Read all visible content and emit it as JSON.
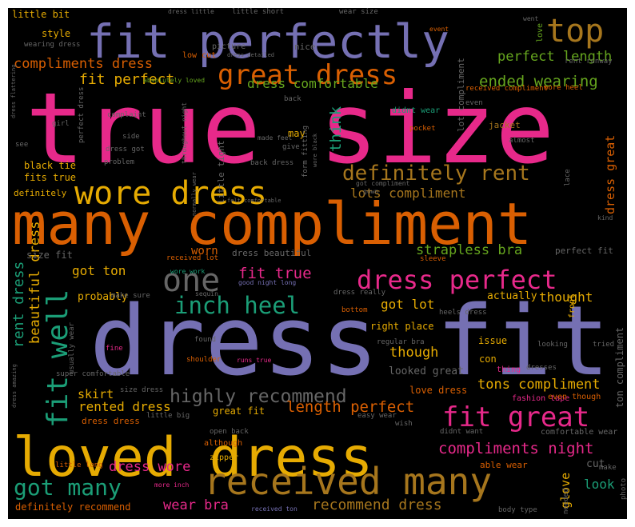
{
  "palette": {
    "pink": "#e7298a",
    "purple": "#7570b3",
    "orange": "#d95f02",
    "gold": "#e6ab02",
    "teal": "#1b9e77",
    "green": "#66a61e",
    "brown": "#a6761d",
    "gray": "#666666",
    "background": "#000000",
    "frame": "#ffffff"
  },
  "words": [
    {
      "text": "true size",
      "color": "pink"
    },
    {
      "text": "dress fit",
      "color": "purple"
    },
    {
      "text": "many compliment",
      "color": "orange"
    },
    {
      "text": "fit perfectly",
      "color": "purple"
    },
    {
      "text": "loved dress",
      "color": "gold"
    },
    {
      "text": "received many",
      "color": "brown"
    },
    {
      "text": "great dress",
      "color": "orange"
    },
    {
      "text": "wore dress",
      "color": "gold"
    },
    {
      "text": "dress perfect",
      "color": "pink"
    },
    {
      "text": "fit great",
      "color": "pink"
    },
    {
      "text": "top",
      "color": "brown"
    },
    {
      "text": "one",
      "color": "gray"
    },
    {
      "text": "definitely rent",
      "color": "brown"
    },
    {
      "text": "inch heel",
      "color": "teal"
    },
    {
      "text": "highly recommend",
      "color": "gray"
    },
    {
      "text": "got many",
      "color": "teal"
    },
    {
      "text": "fit well",
      "color": "teal"
    },
    {
      "text": "compliments dress",
      "color": "orange"
    },
    {
      "text": "fit perfect",
      "color": "gold"
    },
    {
      "text": "dress comfortable",
      "color": "green"
    },
    {
      "text": "ended wearing",
      "color": "green"
    },
    {
      "text": "perfect length",
      "color": "green"
    },
    {
      "text": "lots compliment",
      "color": "brown"
    },
    {
      "text": "fit true",
      "color": "pink"
    },
    {
      "text": "strapless bra",
      "color": "green"
    },
    {
      "text": "compliments night",
      "color": "pink"
    },
    {
      "text": "length perfect",
      "color": "orange"
    },
    {
      "text": "tons compliment",
      "color": "gold"
    },
    {
      "text": "recommend dress",
      "color": "brown"
    },
    {
      "text": "dress wore",
      "color": "pink"
    },
    {
      "text": "wear bra",
      "color": "pink"
    },
    {
      "text": "think",
      "color": "teal"
    },
    {
      "text": "rent dress",
      "color": "teal"
    },
    {
      "text": "beautiful dress",
      "color": "gold"
    },
    {
      "text": "got ton",
      "color": "gold"
    },
    {
      "text": "got lot",
      "color": "gold"
    },
    {
      "text": "though",
      "color": "gold"
    },
    {
      "text": "thought",
      "color": "gold"
    },
    {
      "text": "skirt",
      "color": "gold"
    },
    {
      "text": "rented dress",
      "color": "gold"
    },
    {
      "text": "worn",
      "color": "orange"
    },
    {
      "text": "look",
      "color": "teal"
    },
    {
      "text": "glove",
      "color": "gold"
    },
    {
      "text": "dress great",
      "color": "orange"
    },
    {
      "text": "little bit",
      "color": "gold"
    },
    {
      "text": "style",
      "color": "gold"
    },
    {
      "text": "definitely recommend",
      "color": "orange"
    },
    {
      "text": "probably",
      "color": "gold"
    },
    {
      "text": "actually",
      "color": "gold"
    },
    {
      "text": "looked great",
      "color": "gray"
    },
    {
      "text": "love dress",
      "color": "orange"
    },
    {
      "text": "great fit",
      "color": "gold"
    },
    {
      "text": "cut",
      "color": "gray"
    },
    {
      "text": "size fit",
      "color": "gray"
    },
    {
      "text": "dress beautiful",
      "color": "gray"
    },
    {
      "text": "perfect fit",
      "color": "gray"
    },
    {
      "text": "black tie",
      "color": "gold"
    },
    {
      "text": "fits true",
      "color": "gold"
    },
    {
      "text": "definitely",
      "color": "gold"
    },
    {
      "text": "little tight",
      "color": "gray"
    },
    {
      "text": "right place",
      "color": "gold"
    },
    {
      "text": "issue",
      "color": "gold"
    },
    {
      "text": "con",
      "color": "gold"
    },
    {
      "text": "ton compliment",
      "color": "gray"
    },
    {
      "text": "dress dress",
      "color": "orange"
    },
    {
      "text": "nice",
      "color": "gray"
    },
    {
      "text": "may",
      "color": "gold"
    },
    {
      "text": "lot compliment",
      "color": "gray"
    },
    {
      "text": "received compliment",
      "color": "orange"
    },
    {
      "text": "wore heel",
      "color": "orange"
    },
    {
      "text": "didnt wear",
      "color": "teal"
    },
    {
      "text": "picture",
      "color": "gray"
    },
    {
      "text": "low cut",
      "color": "orange"
    },
    {
      "text": "rent runway",
      "color": "gray"
    },
    {
      "text": "jacket",
      "color": "brown"
    },
    {
      "text": "pocket",
      "color": "orange"
    },
    {
      "text": "front",
      "color": "gold"
    },
    {
      "text": "able wear",
      "color": "orange"
    },
    {
      "text": "make",
      "color": "gray"
    },
    {
      "text": "body type",
      "color": "gray"
    },
    {
      "text": "needed",
      "color": "gray"
    },
    {
      "text": "photo",
      "color": "gray"
    },
    {
      "text": "zipper",
      "color": "gold"
    },
    {
      "text": "although",
      "color": "orange"
    },
    {
      "text": "open back",
      "color": "gray"
    },
    {
      "text": "little big",
      "color": "gray"
    },
    {
      "text": "size dress",
      "color": "gray"
    },
    {
      "text": "fashion tape",
      "color": "pink"
    },
    {
      "text": "even though",
      "color": "orange"
    },
    {
      "text": "comfortable wear",
      "color": "gray"
    },
    {
      "text": "didnt want",
      "color": "gray"
    },
    {
      "text": "wish",
      "color": "gray"
    },
    {
      "text": "easy wear",
      "color": "gray"
    },
    {
      "text": "little long",
      "color": "orange"
    },
    {
      "text": "more inch",
      "color": "pink"
    },
    {
      "text": "received ton",
      "color": "purple"
    },
    {
      "text": "dresses",
      "color": "gray"
    },
    {
      "text": "thing",
      "color": "pink"
    },
    {
      "text": "tried",
      "color": "gray"
    },
    {
      "text": "looking",
      "color": "gray"
    },
    {
      "text": "regular bra",
      "color": "gray"
    },
    {
      "text": "heels dress",
      "color": "gray"
    },
    {
      "text": "bottom",
      "color": "orange"
    },
    {
      "text": "dress really",
      "color": "gray"
    },
    {
      "text": "good night long",
      "color": "purple"
    },
    {
      "text": "wore work",
      "color": "teal"
    },
    {
      "text": "make sure",
      "color": "gray"
    },
    {
      "text": "sequin",
      "color": "gray"
    },
    {
      "text": "super comfortable",
      "color": "gray"
    },
    {
      "text": "usually wear",
      "color": "gray"
    },
    {
      "text": "fine",
      "color": "pink"
    },
    {
      "text": "shoulder",
      "color": "orange"
    },
    {
      "text": "found",
      "color": "gray"
    },
    {
      "text": "runs true",
      "color": "pink"
    },
    {
      "text": "sleeve",
      "color": "orange"
    },
    {
      "text": "received lot",
      "color": "orange"
    },
    {
      "text": "dress amazing",
      "color": "gray"
    },
    {
      "text": "little short",
      "color": "gray"
    },
    {
      "text": "dress little",
      "color": "gray"
    },
    {
      "text": "wear size",
      "color": "gray"
    },
    {
      "text": "event",
      "color": "orange"
    },
    {
      "text": "went",
      "color": "gray"
    },
    {
      "text": "love",
      "color": "green"
    },
    {
      "text": "wearing dress",
      "color": "gray"
    },
    {
      "text": "dress flattering",
      "color": "gray"
    },
    {
      "text": "absolutely loved",
      "color": "green"
    },
    {
      "text": "dress detailed",
      "color": "gray"
    },
    {
      "text": "back",
      "color": "gray"
    },
    {
      "text": "even",
      "color": "gray"
    },
    {
      "text": "complaint",
      "color": "gray"
    },
    {
      "text": "side",
      "color": "gray"
    },
    {
      "text": "girl",
      "color": "gray"
    },
    {
      "text": "perfect dress",
      "color": "gray"
    },
    {
      "text": "throughout night",
      "color": "gray"
    },
    {
      "text": "made feel",
      "color": "gray"
    },
    {
      "text": "form fitting",
      "color": "gray"
    },
    {
      "text": "wore black",
      "color": "gray"
    },
    {
      "text": "dress got",
      "color": "gray"
    },
    {
      "text": "give",
      "color": "gray"
    },
    {
      "text": "problem",
      "color": "gray"
    },
    {
      "text": "back dress",
      "color": "gray"
    },
    {
      "text": "almost",
      "color": "gray"
    },
    {
      "text": "got compliment",
      "color": "gray"
    },
    {
      "text": "lace",
      "color": "gray"
    },
    {
      "text": "kind",
      "color": "gray"
    },
    {
      "text": "gown",
      "color": "gray"
    },
    {
      "text": "normally wear",
      "color": "gray"
    },
    {
      "text": "felt comfortable",
      "color": "gray"
    },
    {
      "text": "see",
      "color": "gray"
    }
  ]
}
